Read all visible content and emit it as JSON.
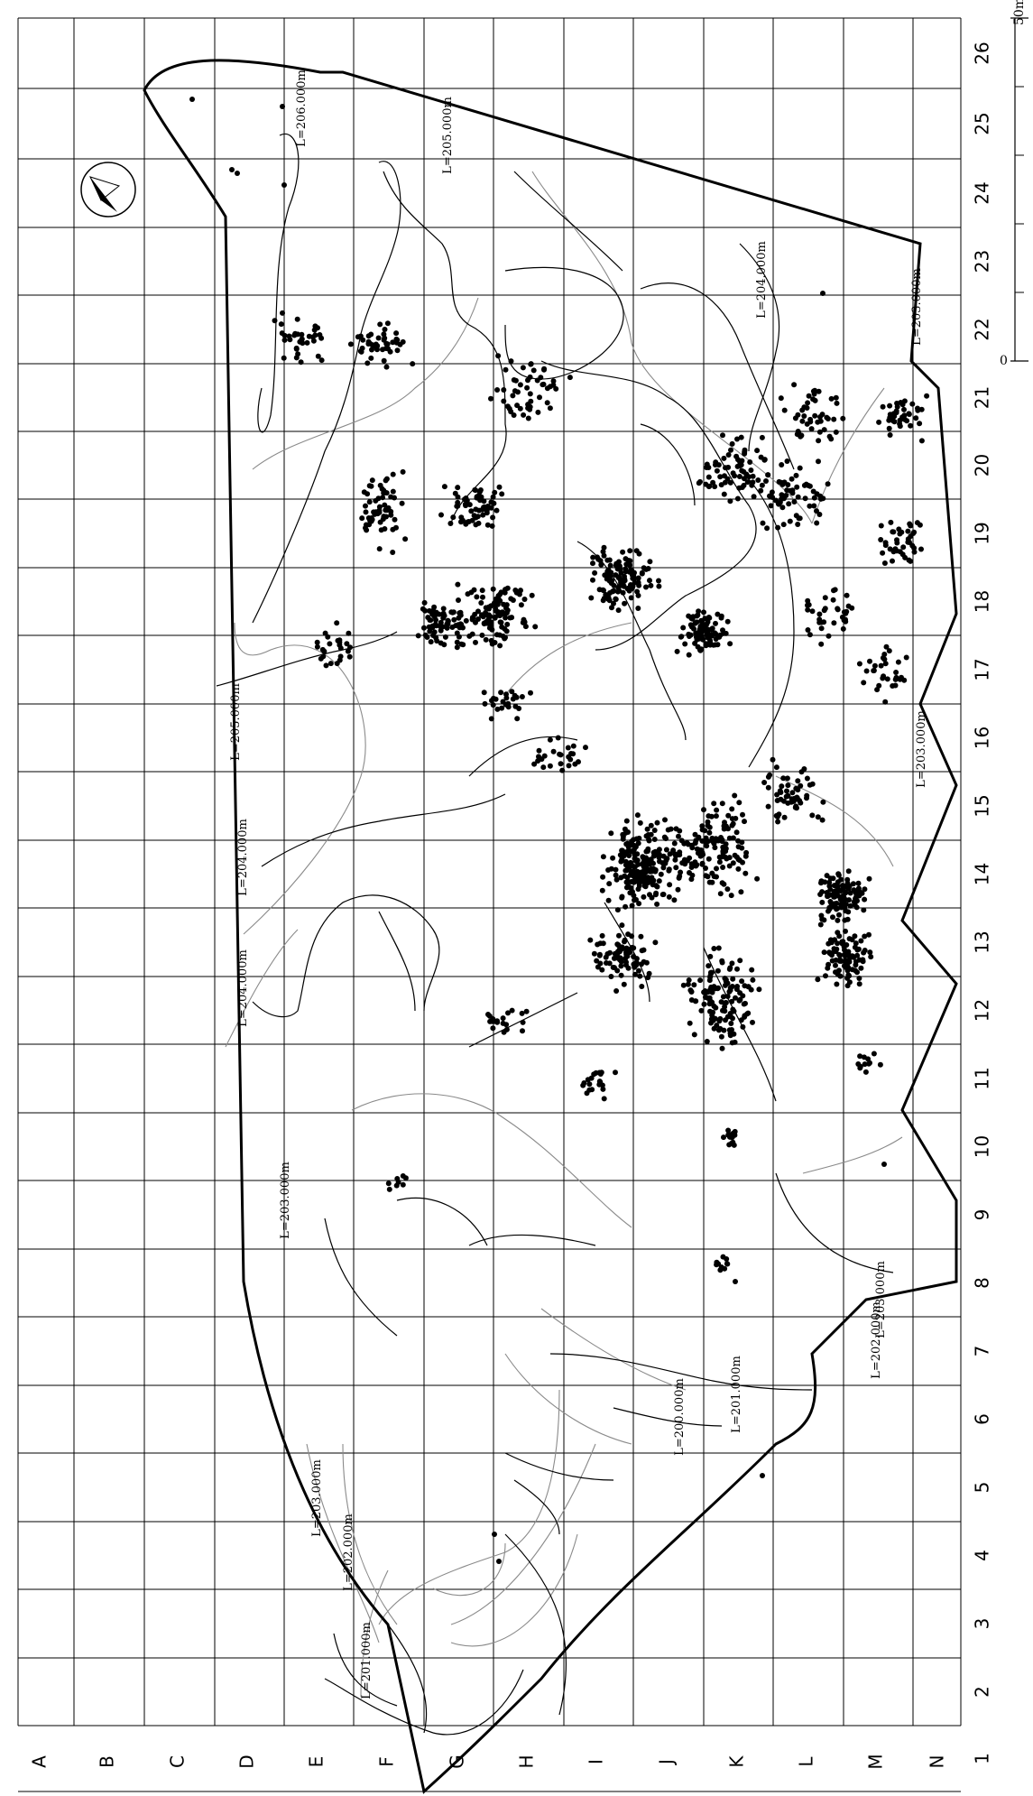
{
  "grid": {
    "columns": [
      "A",
      "B",
      "C",
      "D",
      "E",
      "F",
      "G",
      "H",
      "I",
      "J",
      "K",
      "L",
      "M",
      "N"
    ],
    "rows": [
      "1",
      "2",
      "3",
      "4",
      "5",
      "6",
      "7",
      "8",
      "9",
      "10",
      "11",
      "12",
      "13",
      "14",
      "15",
      "16",
      "17",
      "18",
      "19",
      "20",
      "21",
      "22",
      "23",
      "24",
      "25",
      "26"
    ]
  },
  "scale": {
    "label": "50m",
    "origin_label": "0"
  },
  "colors": {
    "ink": "#000000",
    "contour_secondary": "#8a8a8a",
    "background": "#ffffff"
  },
  "contour_labels": [
    {
      "text": "L=206.000m"
    },
    {
      "text": "L=205.000m"
    },
    {
      "text": "L=205.000m"
    },
    {
      "text": "L=204.000m"
    },
    {
      "text": "L=204.000m"
    },
    {
      "text": "L=204.000m"
    },
    {
      "text": "L=203.000m"
    },
    {
      "text": "L=203.000m"
    },
    {
      "text": "L=203.000m"
    },
    {
      "text": "L=203.000m"
    },
    {
      "text": "L=203.000m"
    },
    {
      "text": "L=202.000m"
    },
    {
      "text": "L=202.000m"
    },
    {
      "text": "L=201.000m"
    },
    {
      "text": "L=201.000m"
    },
    {
      "text": "L=200.000m"
    }
  ],
  "icons": {
    "north_arrow": "north-arrow-icon"
  }
}
